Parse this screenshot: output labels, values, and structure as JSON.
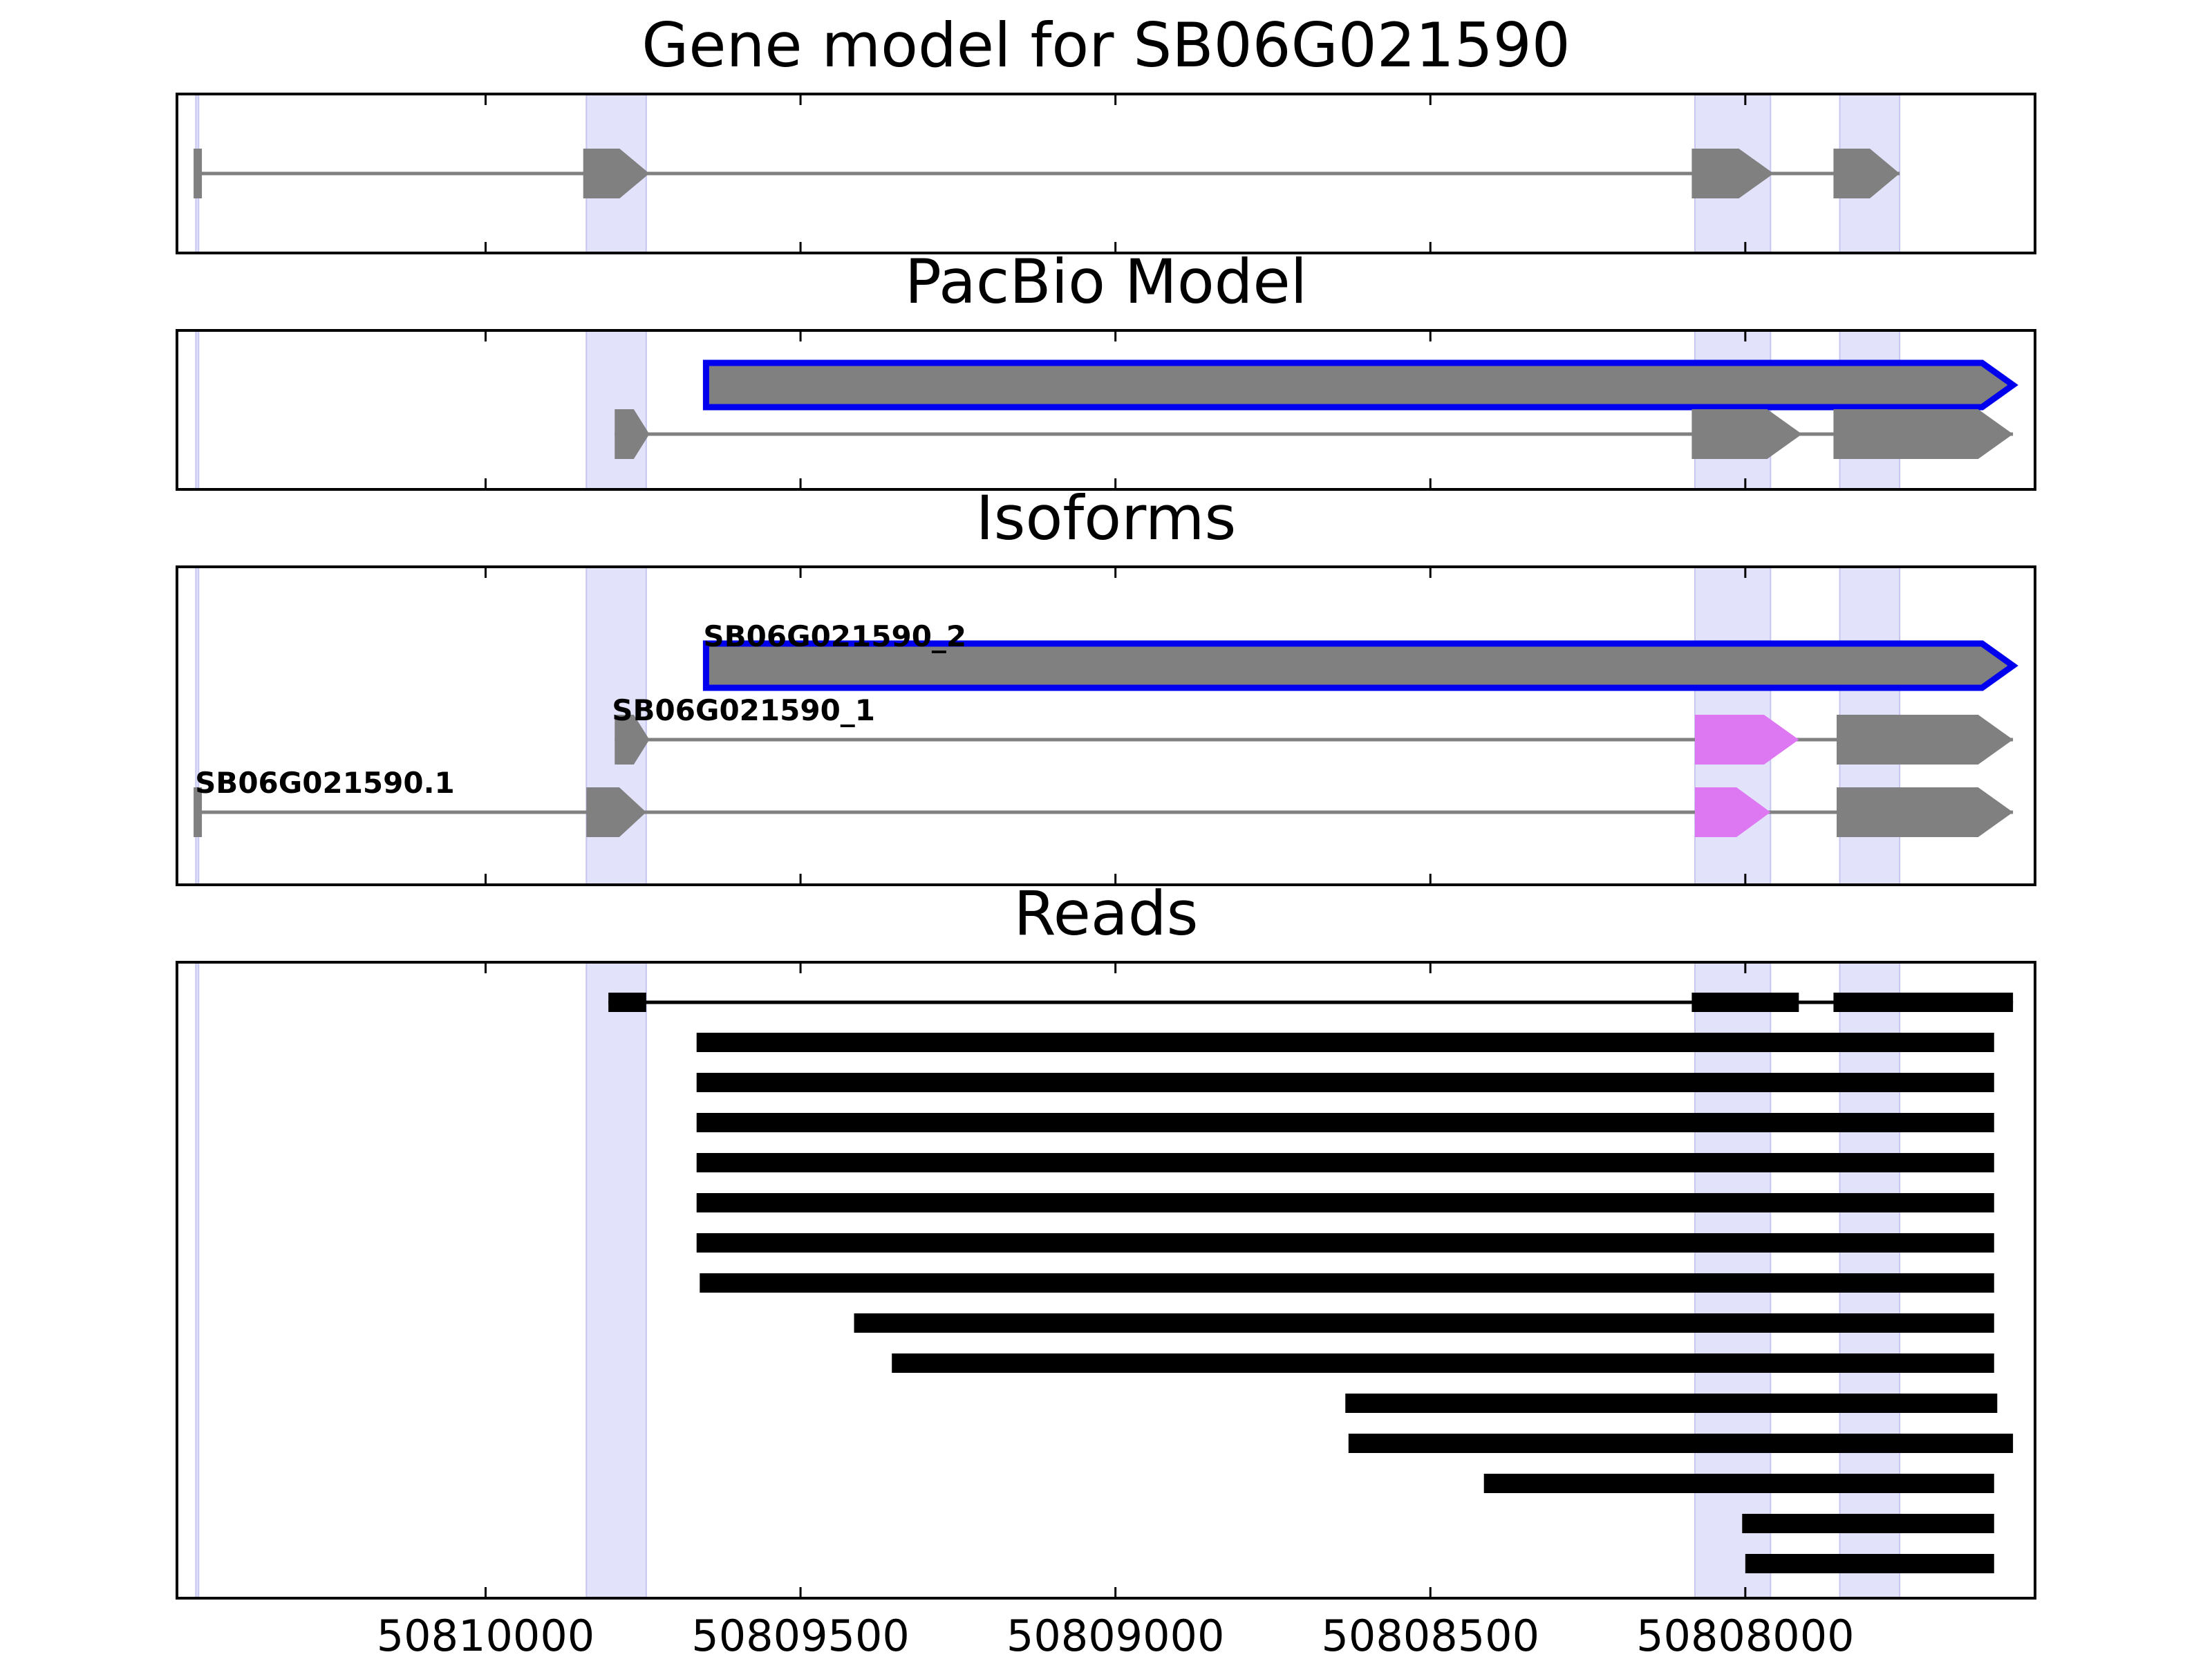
{
  "chart_data": {
    "type": "gene-model-tracks",
    "xlim": [
      50810490,
      50807540
    ],
    "x_reversed": true,
    "xticks": [
      50810000,
      50809500,
      50809000,
      50808500,
      50808000
    ],
    "xtick_labels": [
      "50810000",
      "50809500",
      "50809000",
      "50808500",
      "50808000"
    ],
    "highlight_regions": [
      [
        50810460,
        50810457
      ],
      [
        50809840,
        50809745
      ],
      [
        50808080,
        50807960
      ],
      [
        50807850,
        50807755
      ]
    ],
    "colors": {
      "feature": "#808080",
      "outline": "#0000ee",
      "highlight": "#e2e2fb",
      "alt_exon": "#dd77f2",
      "read": "#000000"
    },
    "panels": [
      {
        "id": "gene-model",
        "title": "Gene model for SB06G021590",
        "transcripts": [
          {
            "label": "",
            "exons": [
              [
                50810457,
                50810443
              ],
              [
                50809845,
                50809740
              ],
              [
                50808085,
                50807955
              ],
              [
                50807860,
                50807755
              ]
            ]
          }
        ]
      },
      {
        "id": "pacbio-model",
        "title": "PacBio Model",
        "transcripts": [
          {
            "label": "",
            "highlighted": true,
            "exons": [
              [
                50809650,
                50807575
              ]
            ]
          },
          {
            "label": "",
            "exons": [
              [
                50809795,
                50809740
              ],
              [
                50808085,
                50807910
              ],
              [
                50807860,
                50807575
              ]
            ]
          }
        ]
      },
      {
        "id": "isoforms",
        "title": "Isoforms",
        "transcripts": [
          {
            "label": "SB06G021590_2",
            "highlighted": true,
            "exons": [
              [
                50809650,
                50807575
              ]
            ]
          },
          {
            "label": "SB06G021590_1",
            "exons": [
              [
                50809795,
                50809740
              ],
              [
                50808080,
                50807915,
                "alt"
              ],
              [
                50807855,
                50807575
              ]
            ]
          },
          {
            "label": "SB06G021590.1",
            "exons": [
              [
                50810457,
                50810443
              ],
              [
                50809840,
                50809745
              ],
              [
                50808080,
                50807960,
                "alt"
              ],
              [
                50807855,
                50807575
              ]
            ]
          }
        ]
      },
      {
        "id": "reads",
        "title": "Reads",
        "reads": [
          {
            "exons": [
              [
                50809805,
                50809745
              ],
              [
                50808085,
                50807915
              ],
              [
                50807860,
                50807575
              ]
            ]
          },
          {
            "exons": [
              [
                50809665,
                50807605
              ]
            ]
          },
          {
            "exons": [
              [
                50809665,
                50807605
              ]
            ]
          },
          {
            "exons": [
              [
                50809665,
                50807605
              ]
            ]
          },
          {
            "exons": [
              [
                50809665,
                50807605
              ]
            ]
          },
          {
            "exons": [
              [
                50809665,
                50807605
              ]
            ]
          },
          {
            "exons": [
              [
                50809665,
                50807605
              ]
            ]
          },
          {
            "exons": [
              [
                50809660,
                50807605
              ]
            ]
          },
          {
            "exons": [
              [
                50809415,
                50807605
              ]
            ]
          },
          {
            "exons": [
              [
                50809355,
                50807605
              ]
            ]
          },
          {
            "exons": [
              [
                50808635,
                50807600
              ]
            ]
          },
          {
            "exons": [
              [
                50808630,
                50807575
              ]
            ]
          },
          {
            "exons": [
              [
                50808415,
                50807605
              ]
            ]
          },
          {
            "exons": [
              [
                50808005,
                50807605
              ]
            ]
          },
          {
            "exons": [
              [
                50808000,
                50807605
              ]
            ]
          }
        ]
      }
    ]
  }
}
